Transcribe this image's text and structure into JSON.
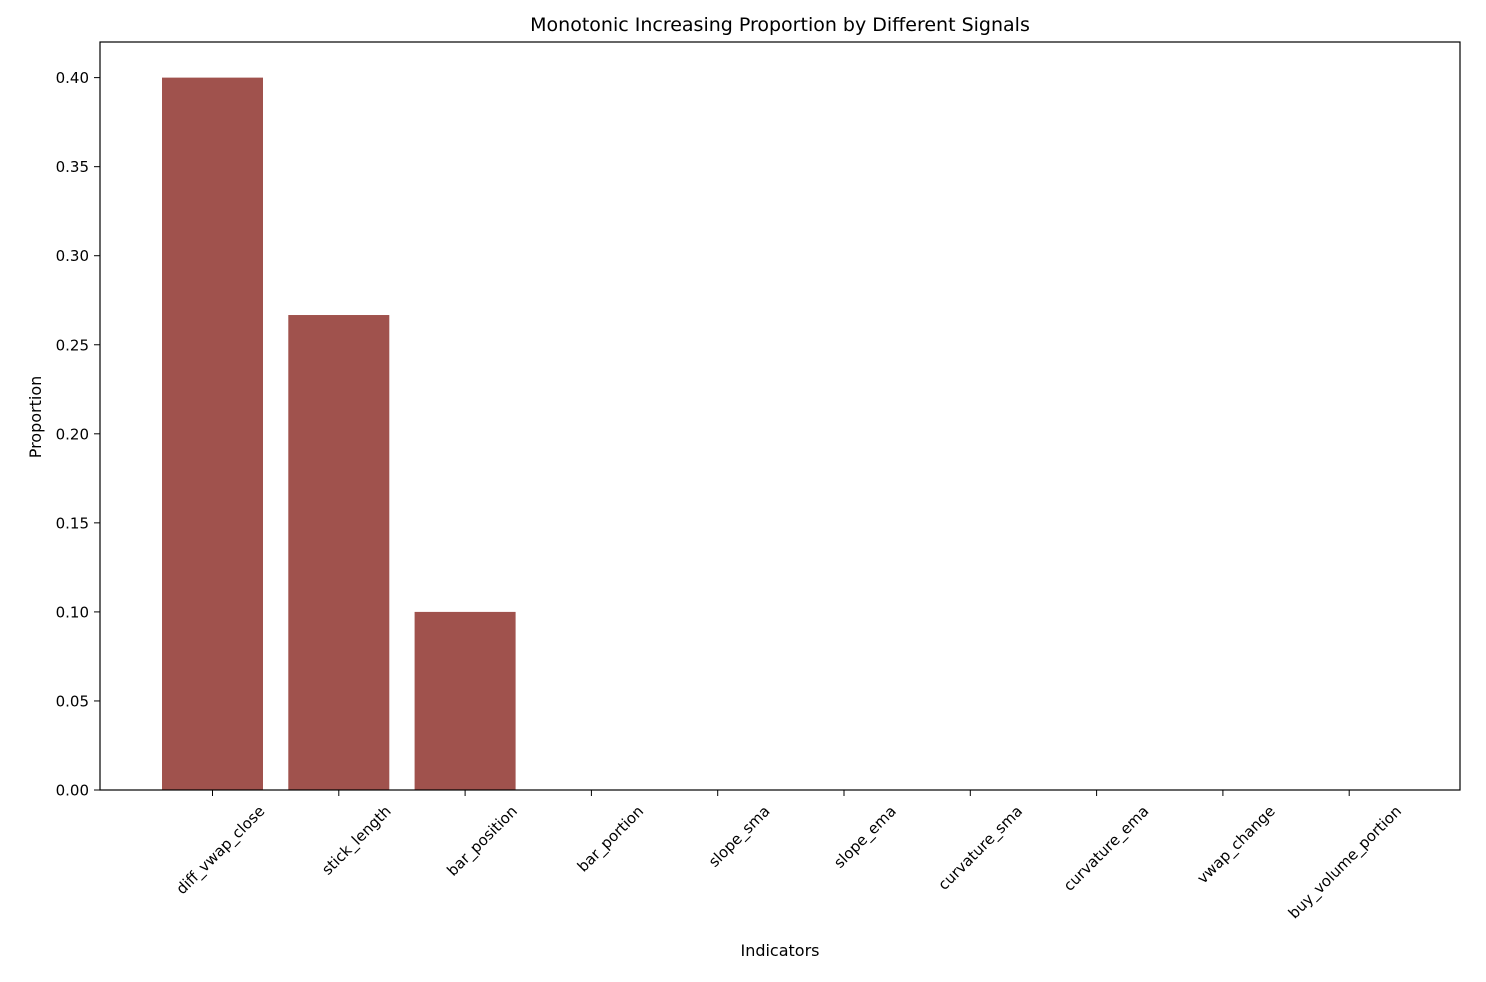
{
  "chart_data": {
    "type": "bar",
    "title": "Monotonic Increasing Proportion by Different Signals",
    "xlabel": "Indicators",
    "ylabel": "Proportion",
    "categories": [
      "diff_vwap_close",
      "stick_length",
      "bar_position",
      "bar_portion",
      "slope_sma",
      "slope_ema",
      "curvature_sma",
      "curvature_ema",
      "vwap_change",
      "buy_volume_portion"
    ],
    "values": [
      0.4,
      0.2667,
      0.1,
      0,
      0,
      0,
      0,
      0,
      0,
      0
    ],
    "ylim": [
      0,
      0.42
    ],
    "yticks": [
      "0.00",
      "0.05",
      "0.10",
      "0.15",
      "0.20",
      "0.25",
      "0.30",
      "0.35",
      "0.40"
    ],
    "bar_color": "#a0524d",
    "grid": false
  }
}
